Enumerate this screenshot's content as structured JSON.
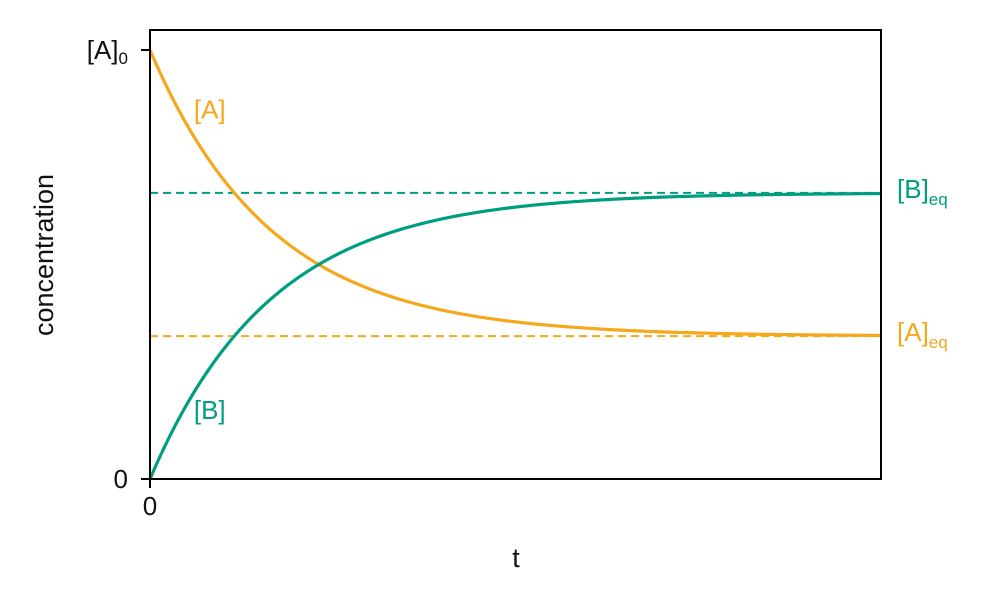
{
  "chart_data": {
    "type": "line",
    "title": "",
    "xlabel": "t",
    "ylabel": "concentration",
    "xlim": [
      0,
      10
    ],
    "ylim": [
      0,
      1
    ],
    "grid": false,
    "legend": "none",
    "x_ticks": [
      {
        "value": 0,
        "label": "0"
      }
    ],
    "y_ticks": [
      {
        "value": 0,
        "label": "0"
      },
      {
        "value": 1,
        "base": "[A]",
        "sub": "0"
      }
    ],
    "rate_constant": 0.6,
    "series": [
      {
        "name": "[A]",
        "color": "#F5A81C",
        "start": 1.0,
        "equilibrium": 0.333
      },
      {
        "name": "[B]",
        "color": "#009E80",
        "start": 0.0,
        "equilibrium": 0.667
      }
    ],
    "equilibrium_lines": [
      {
        "series": "[B]",
        "value": 0.667,
        "base": "[B]",
        "sub": "eq",
        "color": "#009E80"
      },
      {
        "series": "[A]",
        "value": 0.333,
        "base": "[A]",
        "sub": "eq",
        "color": "#F5A81C"
      }
    ],
    "annotations": [
      {
        "text": "[A]",
        "x": 0.6,
        "y": 0.84,
        "color": "#F5A81C"
      },
      {
        "text": "[B]",
        "x": 0.6,
        "y": 0.14,
        "color": "#009E80"
      }
    ]
  }
}
